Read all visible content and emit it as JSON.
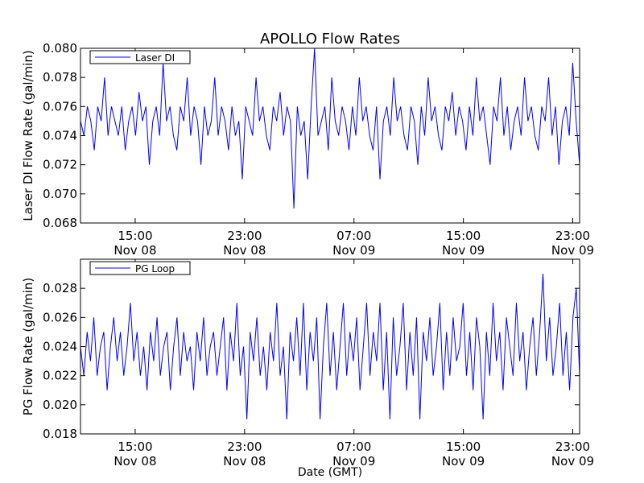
{
  "figure": {
    "title": "APOLLO Flow Rates",
    "xlabel": "Date (GMT)"
  },
  "chart_data": [
    {
      "type": "line",
      "title": "APOLLO Flow Rates",
      "xlabel": "",
      "ylabel": "Laser DI Flow Rate (gal/min)",
      "legend_position": "top-left",
      "grid": false,
      "x_start": "Nov 08 11:00",
      "x_end": "Nov 09 23:30",
      "x_ticks": [
        {
          "time": "Nov 08 15:00",
          "line1": "15:00",
          "line2": "Nov 08"
        },
        {
          "time": "Nov 08 23:00",
          "line1": "23:00",
          "line2": "Nov 08"
        },
        {
          "time": "Nov 09 07:00",
          "line1": "07:00",
          "line2": "Nov 09"
        },
        {
          "time": "Nov 09 15:00",
          "line1": "15:00",
          "line2": "Nov 09"
        },
        {
          "time": "Nov 09 23:00",
          "line1": "23:00",
          "line2": "Nov 09"
        }
      ],
      "ylim": [
        0.068,
        0.08
      ],
      "y_ticks": [
        "0.068",
        "0.070",
        "0.072",
        "0.074",
        "0.076",
        "0.078",
        "0.080"
      ],
      "color": "#0000ff",
      "series": [
        {
          "name": "Laser DI",
          "values": [
            0.075,
            0.074,
            0.076,
            0.075,
            0.073,
            0.076,
            0.075,
            0.078,
            0.074,
            0.076,
            0.075,
            0.074,
            0.076,
            0.073,
            0.075,
            0.076,
            0.074,
            0.077,
            0.075,
            0.076,
            0.072,
            0.075,
            0.076,
            0.074,
            0.079,
            0.075,
            0.076,
            0.074,
            0.073,
            0.076,
            0.075,
            0.078,
            0.074,
            0.076,
            0.075,
            0.072,
            0.076,
            0.074,
            0.075,
            0.078,
            0.074,
            0.076,
            0.075,
            0.073,
            0.076,
            0.074,
            0.075,
            0.071,
            0.076,
            0.075,
            0.074,
            0.078,
            0.075,
            0.076,
            0.074,
            0.073,
            0.076,
            0.075,
            0.077,
            0.074,
            0.076,
            0.075,
            0.069,
            0.076,
            0.074,
            0.075,
            0.071,
            0.076,
            0.08,
            0.074,
            0.075,
            0.076,
            0.073,
            0.078,
            0.075,
            0.074,
            0.076,
            0.075,
            0.073,
            0.076,
            0.074,
            0.078,
            0.075,
            0.076,
            0.074,
            0.073,
            0.076,
            0.071,
            0.075,
            0.076,
            0.074,
            0.078,
            0.075,
            0.076,
            0.074,
            0.073,
            0.076,
            0.075,
            0.072,
            0.076,
            0.074,
            0.078,
            0.075,
            0.076,
            0.074,
            0.073,
            0.076,
            0.075,
            0.077,
            0.074,
            0.076,
            0.075,
            0.073,
            0.076,
            0.074,
            0.078,
            0.075,
            0.076,
            0.074,
            0.072,
            0.076,
            0.075,
            0.078,
            0.074,
            0.076,
            0.073,
            0.075,
            0.076,
            0.074,
            0.078,
            0.075,
            0.076,
            0.074,
            0.073,
            0.076,
            0.075,
            0.078,
            0.074,
            0.076,
            0.072,
            0.075,
            0.076,
            0.074,
            0.079,
            0.075,
            0.072
          ]
        }
      ]
    },
    {
      "type": "line",
      "title": "",
      "xlabel": "Date (GMT)",
      "ylabel": "PG Flow Rate (gal/min)",
      "legend_position": "top-left",
      "grid": false,
      "x_start": "Nov 08 11:00",
      "x_end": "Nov 09 23:30",
      "x_ticks": [
        {
          "time": "Nov 08 15:00",
          "line1": "15:00",
          "line2": "Nov 08"
        },
        {
          "time": "Nov 08 23:00",
          "line1": "23:00",
          "line2": "Nov 08"
        },
        {
          "time": "Nov 09 07:00",
          "line1": "07:00",
          "line2": "Nov 09"
        },
        {
          "time": "Nov 09 15:00",
          "line1": "15:00",
          "line2": "Nov 09"
        },
        {
          "time": "Nov 09 23:00",
          "line1": "23:00",
          "line2": "Nov 09"
        }
      ],
      "ylim": [
        0.018,
        0.03
      ],
      "y_ticks": [
        "0.018",
        "0.020",
        "0.022",
        "0.024",
        "0.026",
        "0.028"
      ],
      "color": "#0000ff",
      "series": [
        {
          "name": "PG Loop",
          "values": [
            0.024,
            0.022,
            0.025,
            0.023,
            0.026,
            0.022,
            0.024,
            0.025,
            0.021,
            0.024,
            0.026,
            0.023,
            0.025,
            0.022,
            0.024,
            0.027,
            0.023,
            0.025,
            0.022,
            0.024,
            0.021,
            0.025,
            0.023,
            0.026,
            0.022,
            0.024,
            0.025,
            0.021,
            0.024,
            0.026,
            0.022,
            0.025,
            0.023,
            0.024,
            0.021,
            0.025,
            0.023,
            0.026,
            0.022,
            0.024,
            0.025,
            0.022,
            0.024,
            0.026,
            0.021,
            0.025,
            0.023,
            0.027,
            0.022,
            0.024,
            0.019,
            0.025,
            0.023,
            0.026,
            0.022,
            0.024,
            0.021,
            0.025,
            0.023,
            0.027,
            0.022,
            0.024,
            0.019,
            0.025,
            0.023,
            0.026,
            0.022,
            0.027,
            0.021,
            0.025,
            0.023,
            0.026,
            0.019,
            0.024,
            0.027,
            0.022,
            0.025,
            0.021,
            0.024,
            0.027,
            0.022,
            0.025,
            0.023,
            0.026,
            0.021,
            0.024,
            0.027,
            0.022,
            0.025,
            0.023,
            0.027,
            0.021,
            0.025,
            0.019,
            0.026,
            0.022,
            0.024,
            0.027,
            0.021,
            0.025,
            0.022,
            0.026,
            0.019,
            0.025,
            0.023,
            0.026,
            0.022,
            0.024,
            0.027,
            0.021,
            0.025,
            0.022,
            0.026,
            0.023,
            0.024,
            0.027,
            0.022,
            0.025,
            0.021,
            0.026,
            0.024,
            0.019,
            0.025,
            0.022,
            0.027,
            0.023,
            0.025,
            0.021,
            0.026,
            0.024,
            0.022,
            0.027,
            0.023,
            0.025,
            0.021,
            0.024,
            0.026,
            0.022,
            0.025,
            0.029,
            0.023,
            0.026,
            0.022,
            0.024,
            0.027,
            0.022,
            0.025,
            0.021,
            0.026,
            0.028,
            0.022
          ]
        }
      ]
    }
  ]
}
